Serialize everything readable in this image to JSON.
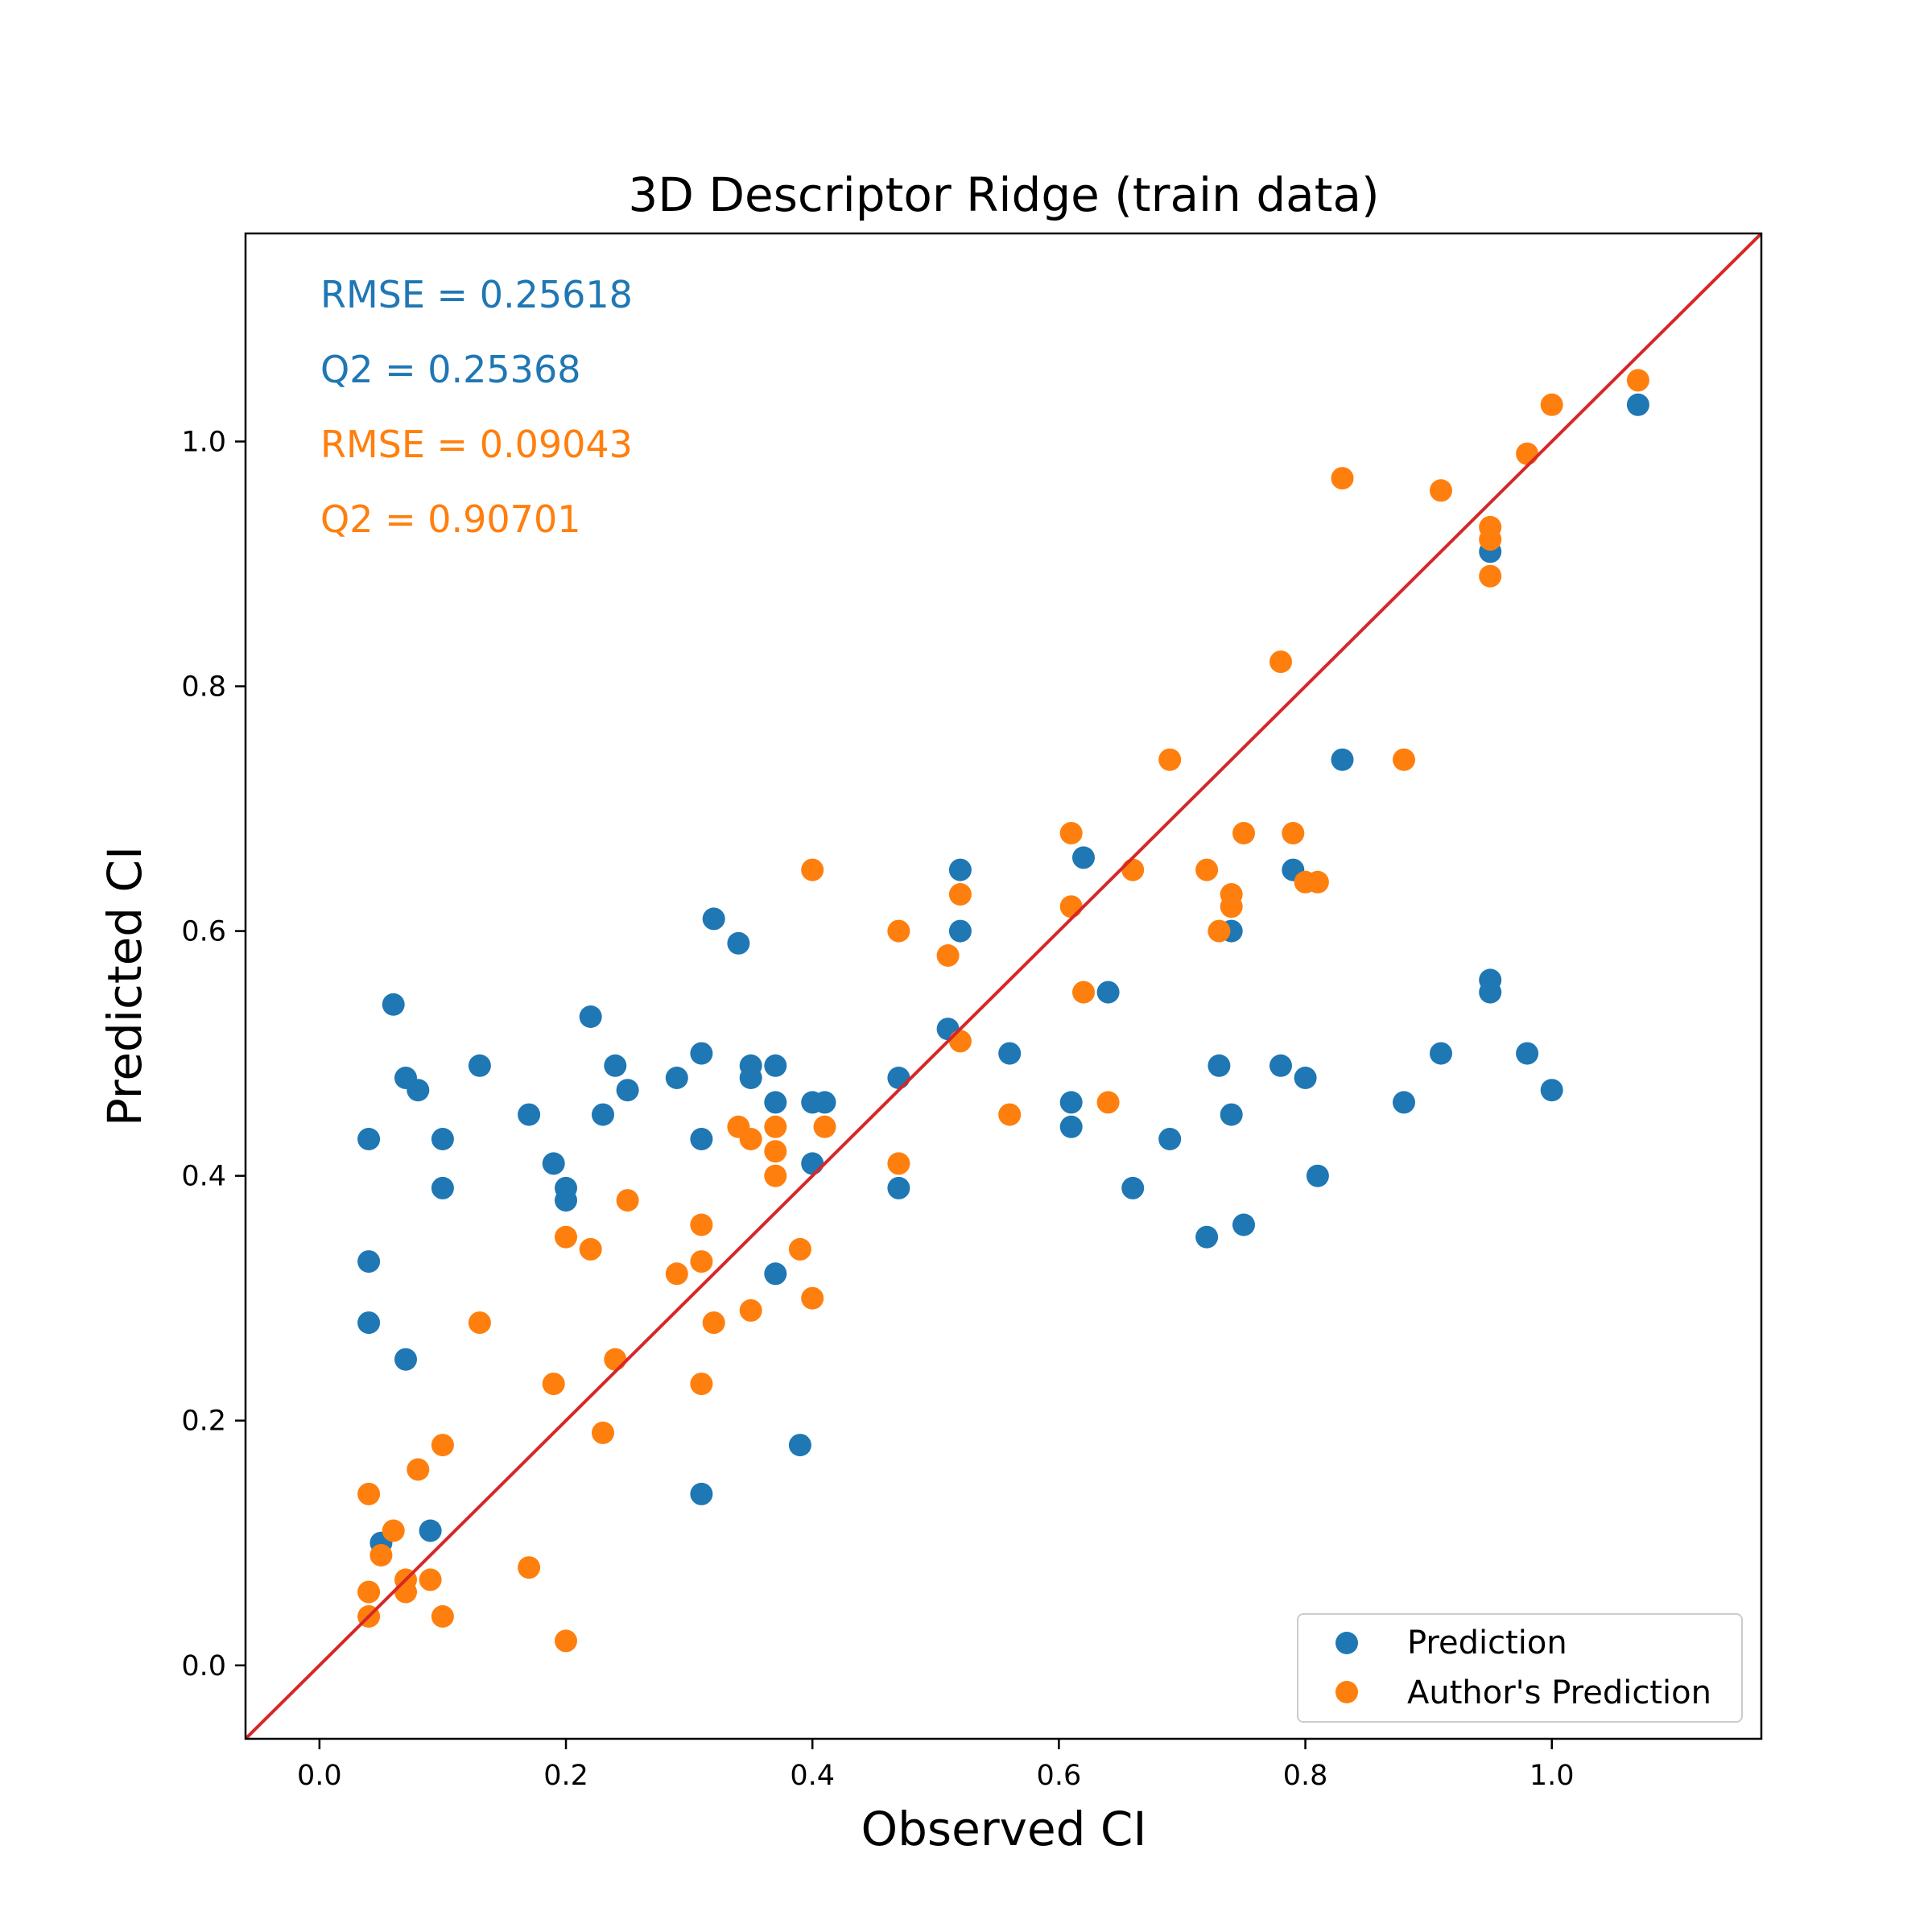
{
  "colors": {
    "prediction": "#1f77b4",
    "author": "#ff7f0e",
    "identity_line": "#d62728"
  },
  "annotations": {
    "pred_rmse": "RMSE = 0.25618",
    "pred_q2": "Q2 = 0.25368",
    "author_rmse": "RMSE = 0.09043",
    "author_q2": "Q2 = 0.90701"
  },
  "chart_data": {
    "type": "scatter",
    "title": "3D Descriptor Ridge (train data)",
    "xlabel": "Observed CI",
    "ylabel": "Predicted CI",
    "xlim": [
      -0.06,
      1.17
    ],
    "ylim": [
      -0.06,
      1.17
    ],
    "xticks": [
      "0.0",
      "0.2",
      "0.4",
      "0.6",
      "0.8",
      "1.0"
    ],
    "yticks": [
      "0.0",
      "0.2",
      "0.4",
      "0.6",
      "0.8",
      "1.0"
    ],
    "grid": false,
    "legend_position": "bottom-right",
    "identity_line": true,
    "series": [
      {
        "name": "Prediction",
        "points": [
          [
            0.04,
            0.43
          ],
          [
            0.04,
            0.33
          ],
          [
            0.04,
            0.28
          ],
          [
            0.05,
            0.1
          ],
          [
            0.06,
            0.54
          ],
          [
            0.07,
            0.48
          ],
          [
            0.07,
            0.25
          ],
          [
            0.08,
            0.47
          ],
          [
            0.09,
            0.11
          ],
          [
            0.1,
            0.43
          ],
          [
            0.1,
            0.39
          ],
          [
            0.13,
            0.49
          ],
          [
            0.17,
            0.45
          ],
          [
            0.19,
            0.41
          ],
          [
            0.2,
            0.39
          ],
          [
            0.2,
            0.38
          ],
          [
            0.22,
            0.53
          ],
          [
            0.23,
            0.45
          ],
          [
            0.24,
            0.49
          ],
          [
            0.25,
            0.47
          ],
          [
            0.29,
            0.48
          ],
          [
            0.31,
            0.5
          ],
          [
            0.31,
            0.43
          ],
          [
            0.31,
            0.14
          ],
          [
            0.32,
            0.61
          ],
          [
            0.34,
            0.59
          ],
          [
            0.35,
            0.49
          ],
          [
            0.35,
            0.48
          ],
          [
            0.37,
            0.49
          ],
          [
            0.37,
            0.46
          ],
          [
            0.37,
            0.32
          ],
          [
            0.39,
            0.18
          ],
          [
            0.4,
            0.46
          ],
          [
            0.4,
            0.41
          ],
          [
            0.41,
            0.46
          ],
          [
            0.47,
            0.48
          ],
          [
            0.47,
            0.39
          ],
          [
            0.51,
            0.52
          ],
          [
            0.52,
            0.65
          ],
          [
            0.52,
            0.6
          ],
          [
            0.56,
            0.5
          ],
          [
            0.61,
            0.46
          ],
          [
            0.61,
            0.44
          ],
          [
            0.62,
            0.66
          ],
          [
            0.64,
            0.55
          ],
          [
            0.66,
            0.39
          ],
          [
            0.69,
            0.43
          ],
          [
            0.72,
            0.35
          ],
          [
            0.73,
            0.49
          ],
          [
            0.74,
            0.6
          ],
          [
            0.74,
            0.45
          ],
          [
            0.75,
            0.36
          ],
          [
            0.78,
            0.49
          ],
          [
            0.79,
            0.65
          ],
          [
            0.8,
            0.48
          ],
          [
            0.81,
            0.4
          ],
          [
            0.83,
            0.74
          ],
          [
            0.88,
            0.46
          ],
          [
            0.91,
            0.5
          ],
          [
            0.95,
            0.91
          ],
          [
            0.95,
            0.56
          ],
          [
            0.95,
            0.55
          ],
          [
            0.98,
            0.5
          ],
          [
            1.0,
            0.47
          ],
          [
            1.07,
            1.03
          ]
        ]
      },
      {
        "name": "Author's Prediction",
        "points": [
          [
            0.04,
            0.14
          ],
          [
            0.04,
            0.06
          ],
          [
            0.04,
            0.04
          ],
          [
            0.05,
            0.09
          ],
          [
            0.06,
            0.11
          ],
          [
            0.07,
            0.07
          ],
          [
            0.07,
            0.06
          ],
          [
            0.08,
            0.16
          ],
          [
            0.09,
            0.07
          ],
          [
            0.1,
            0.18
          ],
          [
            0.1,
            0.04
          ],
          [
            0.13,
            0.28
          ],
          [
            0.17,
            0.08
          ],
          [
            0.19,
            0.23
          ],
          [
            0.2,
            0.35
          ],
          [
            0.2,
            0.02
          ],
          [
            0.22,
            0.34
          ],
          [
            0.23,
            0.19
          ],
          [
            0.24,
            0.25
          ],
          [
            0.25,
            0.38
          ],
          [
            0.29,
            0.32
          ],
          [
            0.31,
            0.36
          ],
          [
            0.31,
            0.33
          ],
          [
            0.31,
            0.23
          ],
          [
            0.32,
            0.28
          ],
          [
            0.34,
            0.44
          ],
          [
            0.35,
            0.43
          ],
          [
            0.35,
            0.29
          ],
          [
            0.37,
            0.44
          ],
          [
            0.37,
            0.42
          ],
          [
            0.37,
            0.4
          ],
          [
            0.39,
            0.34
          ],
          [
            0.4,
            0.65
          ],
          [
            0.4,
            0.3
          ],
          [
            0.41,
            0.44
          ],
          [
            0.47,
            0.6
          ],
          [
            0.47,
            0.41
          ],
          [
            0.51,
            0.58
          ],
          [
            0.52,
            0.63
          ],
          [
            0.52,
            0.51
          ],
          [
            0.56,
            0.45
          ],
          [
            0.61,
            0.68
          ],
          [
            0.61,
            0.62
          ],
          [
            0.62,
            0.55
          ],
          [
            0.64,
            0.46
          ],
          [
            0.66,
            0.65
          ],
          [
            0.69,
            0.74
          ],
          [
            0.72,
            0.65
          ],
          [
            0.73,
            0.6
          ],
          [
            0.74,
            0.63
          ],
          [
            0.74,
            0.62
          ],
          [
            0.75,
            0.68
          ],
          [
            0.78,
            0.82
          ],
          [
            0.79,
            0.68
          ],
          [
            0.8,
            0.64
          ],
          [
            0.81,
            0.64
          ],
          [
            0.83,
            0.97
          ],
          [
            0.88,
            0.74
          ],
          [
            0.91,
            0.96
          ],
          [
            0.95,
            0.93
          ],
          [
            0.95,
            0.92
          ],
          [
            0.95,
            0.89
          ],
          [
            0.98,
            0.99
          ],
          [
            1.0,
            1.03
          ],
          [
            1.07,
            1.05
          ]
        ]
      }
    ]
  }
}
